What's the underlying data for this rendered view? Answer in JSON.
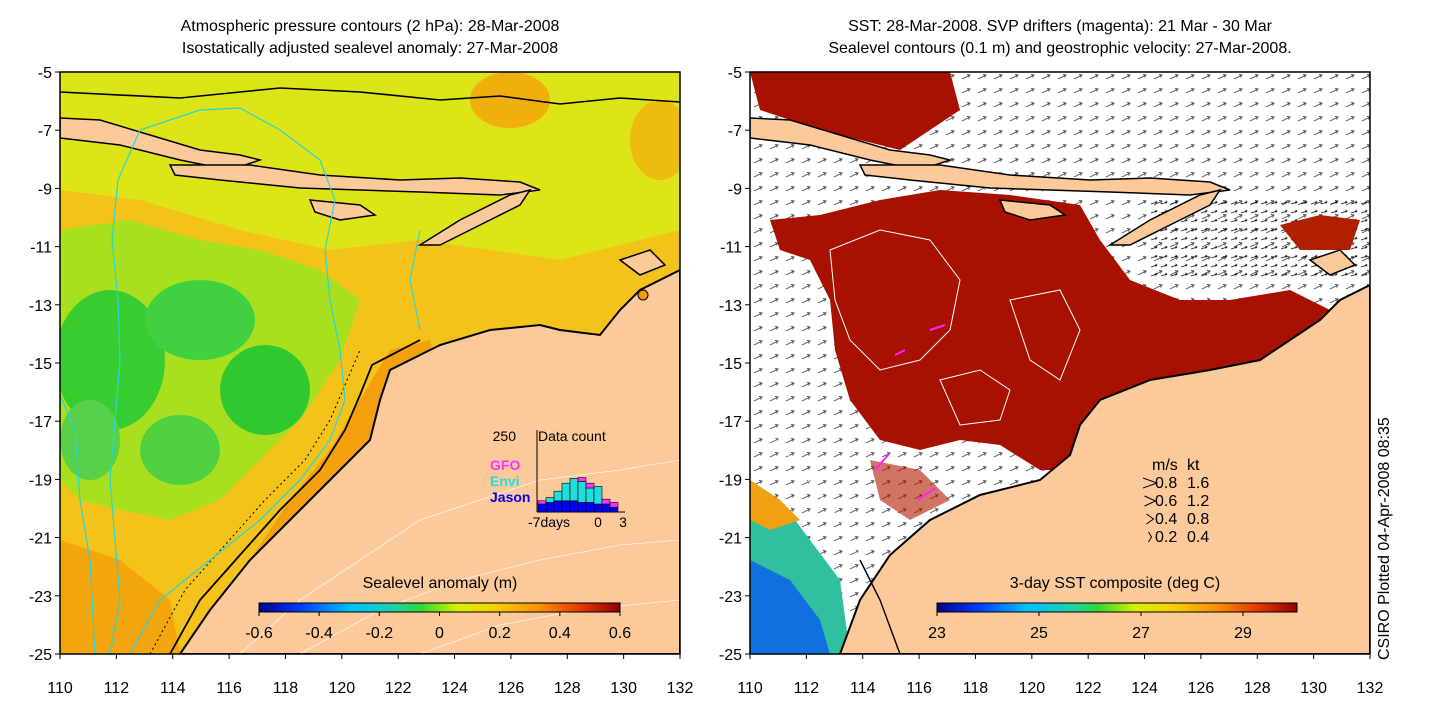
{
  "left_panel": {
    "title_line1": "Atmospheric pressure contours (2 hPa): 28-Mar-2008",
    "title_line2": "Isostatically adjusted sealevel anomaly: 27-Mar-2008",
    "colorbar_label": "Sealevel anomaly (m)",
    "colorbar_ticks": [
      "-0.6",
      "-0.4",
      "-0.2",
      "0",
      "0.2",
      "0.4",
      "0.6"
    ],
    "data_count": {
      "max_label": "250",
      "title": "Data count",
      "legend": [
        {
          "label": "GFO",
          "color": "#ff33ff"
        },
        {
          "label": "Envi",
          "color": "#22dddd"
        },
        {
          "label": "Jason",
          "color": "#0000ee"
        }
      ],
      "xlabel_left": "-7days",
      "xlabel_zero": "0",
      "xlabel_right": "3",
      "bars": [
        {
          "jason": 0.1,
          "envi": 0.0,
          "gfo": 0.04
        },
        {
          "jason": 0.12,
          "envi": 0.06,
          "gfo": 0.0
        },
        {
          "jason": 0.14,
          "envi": 0.12,
          "gfo": 0.0
        },
        {
          "jason": 0.14,
          "envi": 0.22,
          "gfo": 0.0
        },
        {
          "jason": 0.14,
          "envi": 0.28,
          "gfo": 0.0
        },
        {
          "jason": 0.12,
          "envi": 0.26,
          "gfo": 0.05
        },
        {
          "jason": 0.12,
          "envi": 0.18,
          "gfo": 0.06
        },
        {
          "jason": 0.1,
          "envi": 0.22,
          "gfo": 0.0
        },
        {
          "jason": 0.1,
          "envi": 0.0,
          "gfo": 0.06
        },
        {
          "jason": 0.06,
          "envi": 0.0,
          "gfo": 0.06
        }
      ]
    }
  },
  "right_panel": {
    "title_line1": "SST: 28-Mar-2008. SVP drifters (magenta): 21 Mar - 30 Mar",
    "title_line2": "Sealevel contours (0.1 m) and geostrophic velocity: 27-Mar-2008.",
    "colorbar_label": "3-day SST composite (deg C)",
    "colorbar_ticks": [
      "23",
      "25",
      "27",
      "29"
    ],
    "velocity_legend": {
      "header_ms": "m/s",
      "header_kt": "kt",
      "rows": [
        {
          "ms": "0.8",
          "kt": "1.6"
        },
        {
          "ms": "0.6",
          "kt": "1.2"
        },
        {
          "ms": "0.4",
          "kt": "0.8"
        },
        {
          "ms": "0.2",
          "kt": "0.4"
        }
      ]
    }
  },
  "axes": {
    "lat_ticks": [
      "-5",
      "-7",
      "-9",
      "-11",
      "-13",
      "-15",
      "-17",
      "-19",
      "-21",
      "-23",
      "-25"
    ],
    "lon_ticks": [
      "110",
      "112",
      "114",
      "116",
      "118",
      "120",
      "122",
      "124",
      "126",
      "128",
      "130",
      "132"
    ]
  },
  "credit": "CSIRO Plotted 04-Apr-2008 08:35",
  "colors": {
    "land": "#fcc99a",
    "sla_base": "#f5c01a",
    "sst_warm": "#a81000"
  }
}
